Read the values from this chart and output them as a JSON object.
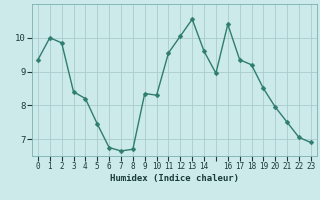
{
  "x": [
    0,
    1,
    2,
    3,
    4,
    5,
    6,
    7,
    8,
    9,
    10,
    11,
    12,
    13,
    14,
    15,
    16,
    17,
    18,
    19,
    20,
    21,
    22,
    23
  ],
  "y": [
    9.35,
    10.0,
    9.85,
    8.4,
    8.2,
    7.45,
    6.75,
    6.65,
    6.7,
    8.35,
    8.3,
    9.55,
    10.05,
    10.55,
    9.6,
    8.95,
    10.4,
    9.35,
    9.2,
    8.5,
    7.95,
    7.5,
    7.05,
    6.9
  ],
  "line_color": "#2e7d6e",
  "marker": "D",
  "markersize": 2.5,
  "linewidth": 1.0,
  "bg_color": "#cceaea",
  "grid_color": "#aacccc",
  "xlabel": "Humidex (Indice chaleur)",
  "xlim": [
    -0.5,
    23.5
  ],
  "ylim": [
    6.5,
    11.0
  ],
  "yticks": [
    7,
    8,
    9,
    10
  ],
  "xtick_labels": [
    "0",
    "1",
    "2",
    "3",
    "4",
    "5",
    "6",
    "7",
    "8",
    "9",
    "10",
    "11",
    "12",
    "13",
    "14",
    "",
    "16",
    "17",
    "18",
    "19",
    "20",
    "21",
    "22",
    "23"
  ],
  "figsize": [
    3.2,
    2.0
  ],
  "dpi": 100
}
